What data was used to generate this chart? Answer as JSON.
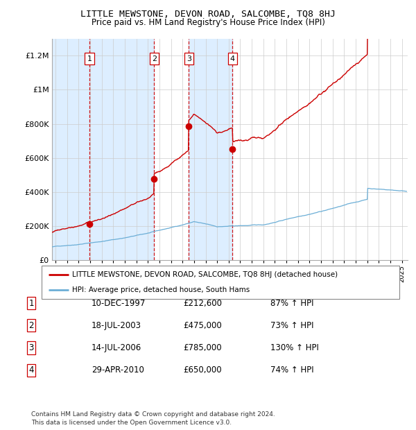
{
  "title": "LITTLE MEWSTONE, DEVON ROAD, SALCOMBE, TQ8 8HJ",
  "subtitle": "Price paid vs. HM Land Registry's House Price Index (HPI)",
  "legend_line1": "LITTLE MEWSTONE, DEVON ROAD, SALCOMBE, TQ8 8HJ (detached house)",
  "legend_line2": "HPI: Average price, detached house, South Hams",
  "footer": "Contains HM Land Registry data © Crown copyright and database right 2024.\nThis data is licensed under the Open Government Licence v3.0.",
  "sale_dates": [
    1997.94,
    2003.54,
    2006.54,
    2010.33
  ],
  "sale_prices": [
    212600,
    475000,
    785000,
    650000
  ],
  "sale_labels": [
    "1",
    "2",
    "3",
    "4"
  ],
  "sale_info": [
    [
      "1",
      "10-DEC-1997",
      "£212,600",
      "87% ↑ HPI"
    ],
    [
      "2",
      "18-JUL-2003",
      "£475,000",
      "73% ↑ HPI"
    ],
    [
      "3",
      "14-JUL-2006",
      "£785,000",
      "130% ↑ HPI"
    ],
    [
      "4",
      "29-APR-2010",
      "£650,000",
      "74% ↑ HPI"
    ]
  ],
  "hpi_color": "#6baed6",
  "price_color": "#cc0000",
  "shade_color": "#ddeeff",
  "ylim": [
    0,
    1300000
  ],
  "xlim_start": 1994.7,
  "xlim_end": 2025.5,
  "yticks": [
    0,
    200000,
    400000,
    600000,
    800000,
    1000000,
    1200000
  ],
  "ytick_labels": [
    "£0",
    "£200K",
    "£400K",
    "£600K",
    "£800K",
    "£1M",
    "£1.2M"
  ]
}
